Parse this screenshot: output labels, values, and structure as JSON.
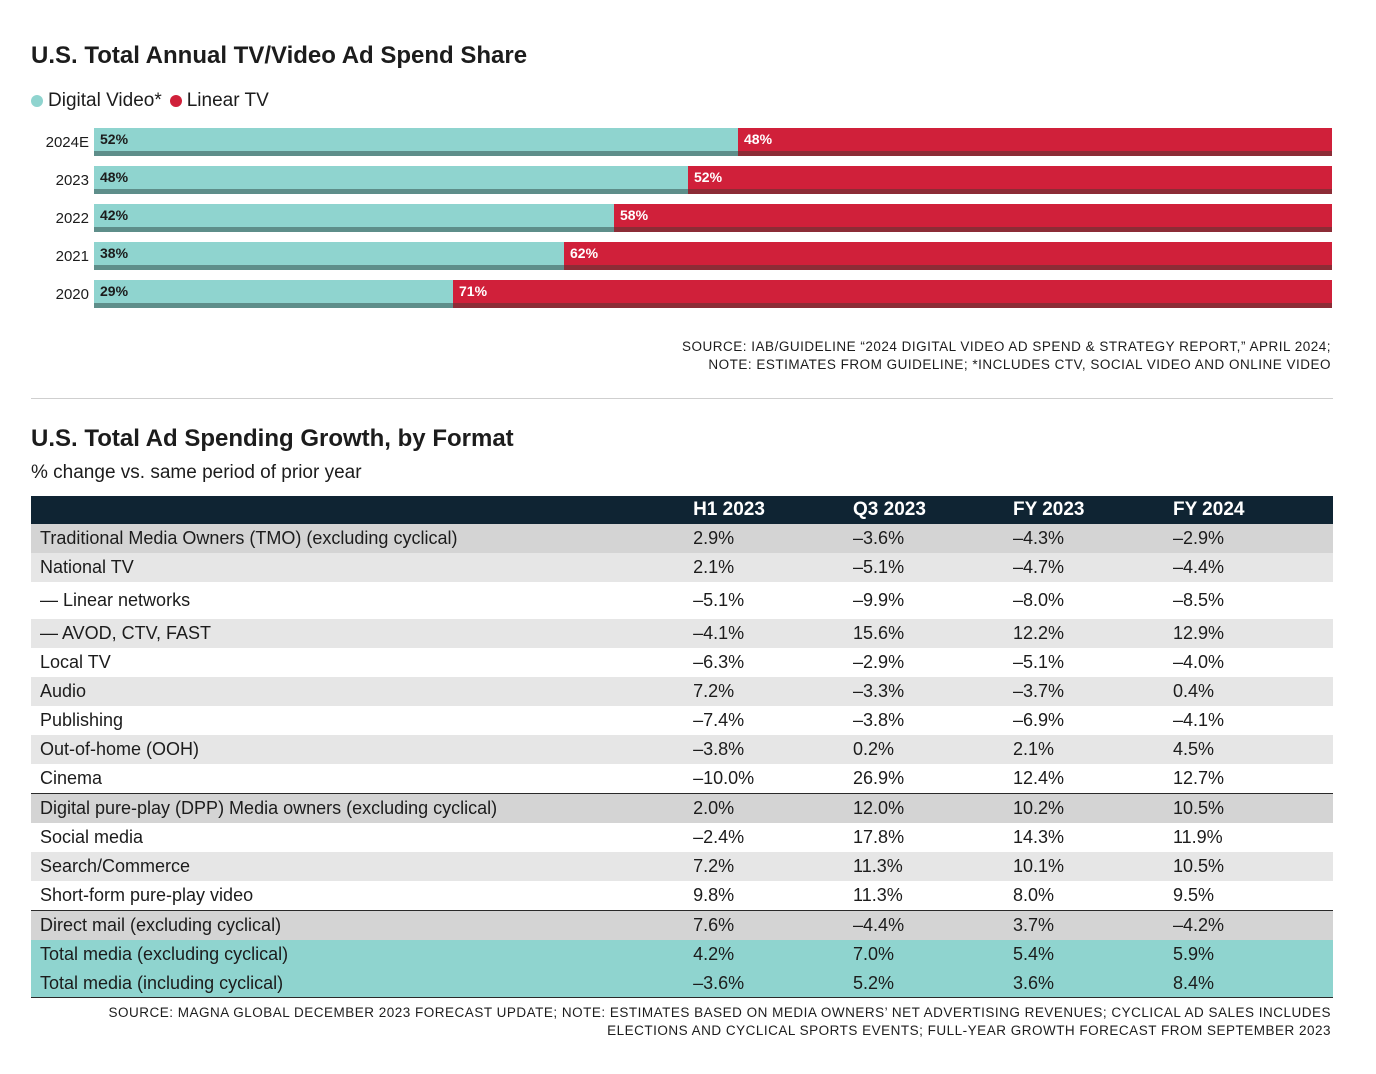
{
  "chart1": {
    "title": "U.S. Total Annual TV/Video Ad Spend Share",
    "legend": [
      {
        "label": "Digital Video*",
        "color": "#8fd4cf"
      },
      {
        "label": "Linear TV",
        "color": "#d0203a"
      }
    ],
    "source_lines": [
      "SOURCE: IAB/GUIDELINE “2024 DIGITAL VIDEO AD SPEND & STRATEGY REPORT,” APRIL 2024;",
      "NOTE: ESTIMATES FROM GUIDELINE; *INCLUDES CTV, SOCIAL VIDEO AND ONLINE VIDEO"
    ]
  },
  "chart_data": {
    "type": "bar",
    "orientation": "horizontal",
    "stacked": true,
    "categories": [
      "2024E",
      "2023",
      "2022",
      "2021",
      "2020"
    ],
    "series": [
      {
        "name": "Digital Video*",
        "values": [
          52,
          48,
          42,
          38,
          29
        ],
        "labels": [
          "52%",
          "48%",
          "42%",
          "38%",
          "29%"
        ],
        "color": "#8fd4cf"
      },
      {
        "name": "Linear TV",
        "values": [
          48,
          52,
          58,
          62,
          71
        ],
        "labels": [
          "48%",
          "52%",
          "58%",
          "62%",
          "71%"
        ],
        "color": "#d0203a"
      }
    ],
    "title": "U.S. Total Annual TV/Video Ad Spend Share",
    "xlim": [
      0,
      100
    ],
    "legend": "top-left",
    "grid": false
  },
  "table": {
    "title": "U.S. Total Ad Spending Growth, by Format",
    "subtitle": "% change vs. same period of prior year",
    "columns": [
      "",
      "H1 2023",
      "Q3 2023",
      "FY 2023",
      "FY 2024"
    ],
    "rows": [
      {
        "label": "Traditional Media Owners (TMO) (excluding cyclical)",
        "values": [
          "2.9%",
          "–3.6%",
          "–4.3%",
          "–2.9%"
        ],
        "style": "head-row first"
      },
      {
        "label": "National TV",
        "values": [
          "2.1%",
          "–5.1%",
          "–4.7%",
          "–4.4%"
        ],
        "style": "shade"
      },
      {
        "label": "— Linear networks",
        "values": [
          "–5.1%",
          "–9.9%",
          "–8.0%",
          "–8.5%"
        ],
        "style": "tall"
      },
      {
        "label": "— AVOD, CTV, FAST",
        "values": [
          "–4.1%",
          "15.6%",
          "12.2%",
          "12.9%"
        ],
        "style": "shade"
      },
      {
        "label": "Local TV",
        "values": [
          "–6.3%",
          "–2.9%",
          "–5.1%",
          "–4.0%"
        ],
        "style": ""
      },
      {
        "label": "Audio",
        "values": [
          "7.2%",
          "–3.3%",
          "–3.7%",
          "0.4%"
        ],
        "style": "shade"
      },
      {
        "label": "Publishing",
        "values": [
          "–7.4%",
          "–3.8%",
          "–6.9%",
          "–4.1%"
        ],
        "style": ""
      },
      {
        "label": "Out-of-home (OOH)",
        "values": [
          "–3.8%",
          "0.2%",
          "2.1%",
          "4.5%"
        ],
        "style": "shade"
      },
      {
        "label": "Cinema",
        "values": [
          "–10.0%",
          "26.9%",
          "12.4%",
          "12.7%"
        ],
        "style": ""
      },
      {
        "label": "Digital pure-play (DPP) Media owners (excluding cyclical)",
        "values": [
          "2.0%",
          "12.0%",
          "10.2%",
          "10.5%"
        ],
        "style": "head-row"
      },
      {
        "label": "Social media",
        "values": [
          "–2.4%",
          "17.8%",
          "14.3%",
          "11.9%"
        ],
        "style": ""
      },
      {
        "label": "Search/Commerce",
        "values": [
          "7.2%",
          "11.3%",
          "10.1%",
          "10.5%"
        ],
        "style": "shade"
      },
      {
        "label": "Short-form pure-play video",
        "values": [
          "9.8%",
          "11.3%",
          "8.0%",
          "9.5%"
        ],
        "style": ""
      },
      {
        "label": "Direct mail (excluding cyclical)",
        "values": [
          "7.6%",
          "–4.4%",
          "3.7%",
          "–4.2%"
        ],
        "style": "head-row"
      },
      {
        "label": "Total media (excluding cyclical)",
        "values": [
          "4.2%",
          "7.0%",
          "5.4%",
          "5.9%"
        ],
        "style": "teal"
      },
      {
        "label": "Total media (including cyclical)",
        "values": [
          "–3.6%",
          "5.2%",
          "3.6%",
          "8.4%"
        ],
        "style": "teal"
      }
    ],
    "source_lines": [
      "SOURCE: MAGNA GLOBAL DECEMBER 2023 FORECAST UPDATE; NOTE: ESTIMATES BASED ON MEDIA OWNERS’ NET ADVERTISING REVENUES; CYCLICAL AD SALES INCLUDES",
      "ELECTIONS AND CYCLICAL SPORTS EVENTS; FULL-YEAR GROWTH FORECAST FROM SEPTEMBER 2023"
    ]
  }
}
